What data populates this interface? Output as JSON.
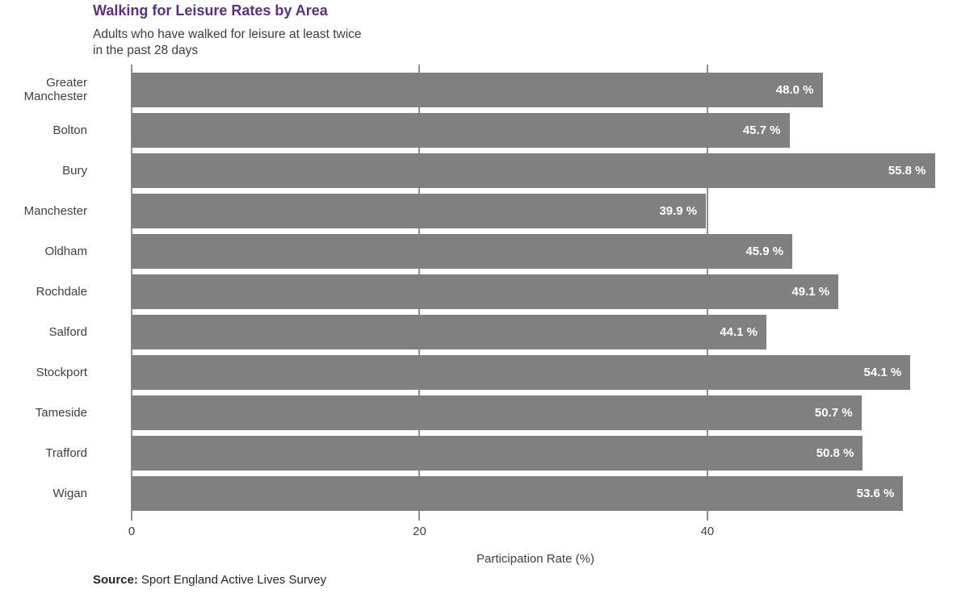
{
  "header": {
    "title": "Walking for Leisure Rates by Area",
    "subtitle": "Adults who have walked for leisure at least twice\nin the past 28 days"
  },
  "chart_data": {
    "type": "bar",
    "orientation": "horizontal",
    "title": "Walking for Leisure Rates by Area",
    "subtitle": "Adults who have walked for leisure at least twice in the past 28 days",
    "categories": [
      "Greater Manchester",
      "Bolton",
      "Bury",
      "Manchester",
      "Oldham",
      "Rochdale",
      "Salford",
      "Stockport",
      "Tameside",
      "Trafford",
      "Wigan"
    ],
    "values": [
      48.0,
      45.7,
      55.8,
      39.9,
      45.9,
      49.1,
      44.1,
      54.1,
      50.7,
      50.8,
      53.6
    ],
    "value_labels": [
      "48.0 %",
      "45.7 %",
      "55.8 %",
      "39.9 %",
      "45.9 %",
      "49.1 %",
      "44.1 %",
      "54.1 %",
      "50.7 %",
      "50.8 %",
      "53.6 %"
    ],
    "xlabel": "Participation Rate (%)",
    "ylabel": "",
    "xlim": [
      0,
      58.8
    ],
    "ticks": [
      {
        "value": 0,
        "label": "0"
      },
      {
        "value": 20,
        "label": "20"
      },
      {
        "value": 40,
        "label": "40"
      }
    ],
    "grid": "vertical gridlines at tick positions, drawn behind bars",
    "legend": "none",
    "bar_color": "#808080",
    "value_label_color": "#ffffff"
  },
  "axis": {
    "xlabel": "Participation Rate (%)"
  },
  "source": {
    "label": "Source:",
    "text": "Sport England Active Lives Survey"
  },
  "colors": {
    "title": "#5C2E86",
    "bar": "#808080",
    "text": "#404040",
    "value_label": "#FFFFFF",
    "gridline": "#8F8F8F"
  }
}
